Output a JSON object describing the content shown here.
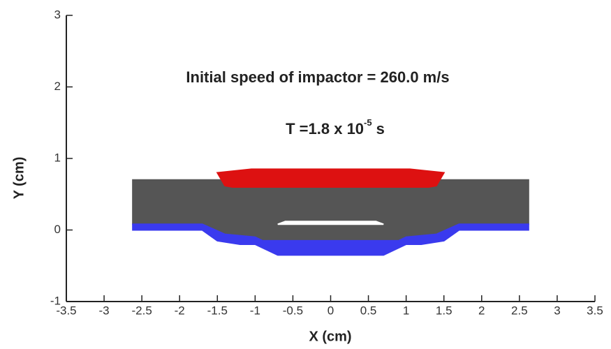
{
  "chart_data": {
    "type": "area",
    "annotation": "Initial speed of impactor = 260.0 m/s",
    "time_label": {
      "text": "T =1.8 x 10",
      "exponent": "-5",
      "unit": "s"
    },
    "x_label": "X (cm)",
    "y_label": "Y (cm)",
    "xlim": [
      -3.5,
      3.5
    ],
    "ylim": [
      -1,
      3
    ],
    "xticks": [
      -3.5,
      -3,
      -2.5,
      -2,
      -1.5,
      -1,
      -0.5,
      0,
      0.5,
      1,
      1.5,
      2,
      2.5,
      3,
      3.5
    ],
    "yticks": [
      -1,
      0,
      1,
      2,
      3
    ],
    "series": [
      {
        "color": "#555555",
        "x": [
          -2.62,
          -2.62,
          2.62,
          2.62,
          1.7,
          1.4,
          1.0,
          0.9,
          -0.9,
          -1.0,
          -1.4,
          -1.7
        ],
        "y": [
          0.08,
          0.7,
          0.7,
          0.08,
          0.08,
          -0.06,
          -0.1,
          -0.15,
          -0.15,
          -0.1,
          -0.06,
          0.08
        ]
      },
      {
        "color": "#3a3aee",
        "x": [
          -2.62,
          -1.7,
          -1.4,
          -1.0,
          -0.9,
          0.9,
          1.0,
          1.4,
          1.7,
          2.62,
          2.62,
          1.7,
          1.5,
          1.2,
          1.0,
          0.7,
          -0.7,
          -1.0,
          -1.2,
          -1.5,
          -1.7,
          -2.62
        ],
        "y": [
          0.08,
          0.08,
          -0.06,
          -0.1,
          -0.15,
          -0.15,
          -0.1,
          -0.06,
          0.08,
          0.08,
          0.0,
          0.0,
          -0.15,
          -0.2,
          -0.2,
          -0.35,
          -0.35,
          -0.2,
          -0.2,
          -0.15,
          0.0,
          0.0
        ]
      },
      {
        "color": "#dd1111",
        "x": [
          -1.5,
          -1.05,
          1.05,
          1.5,
          1.4,
          1.3,
          -1.3,
          -1.4
        ],
        "y": [
          0.8,
          0.85,
          0.85,
          0.8,
          0.62,
          0.6,
          0.6,
          0.62
        ]
      },
      {
        "color": "#ffffff",
        "x": [
          -0.7,
          0.7,
          0.6,
          -0.6
        ],
        "y": [
          0.08,
          0.08,
          0.12,
          0.12
        ]
      }
    ]
  }
}
